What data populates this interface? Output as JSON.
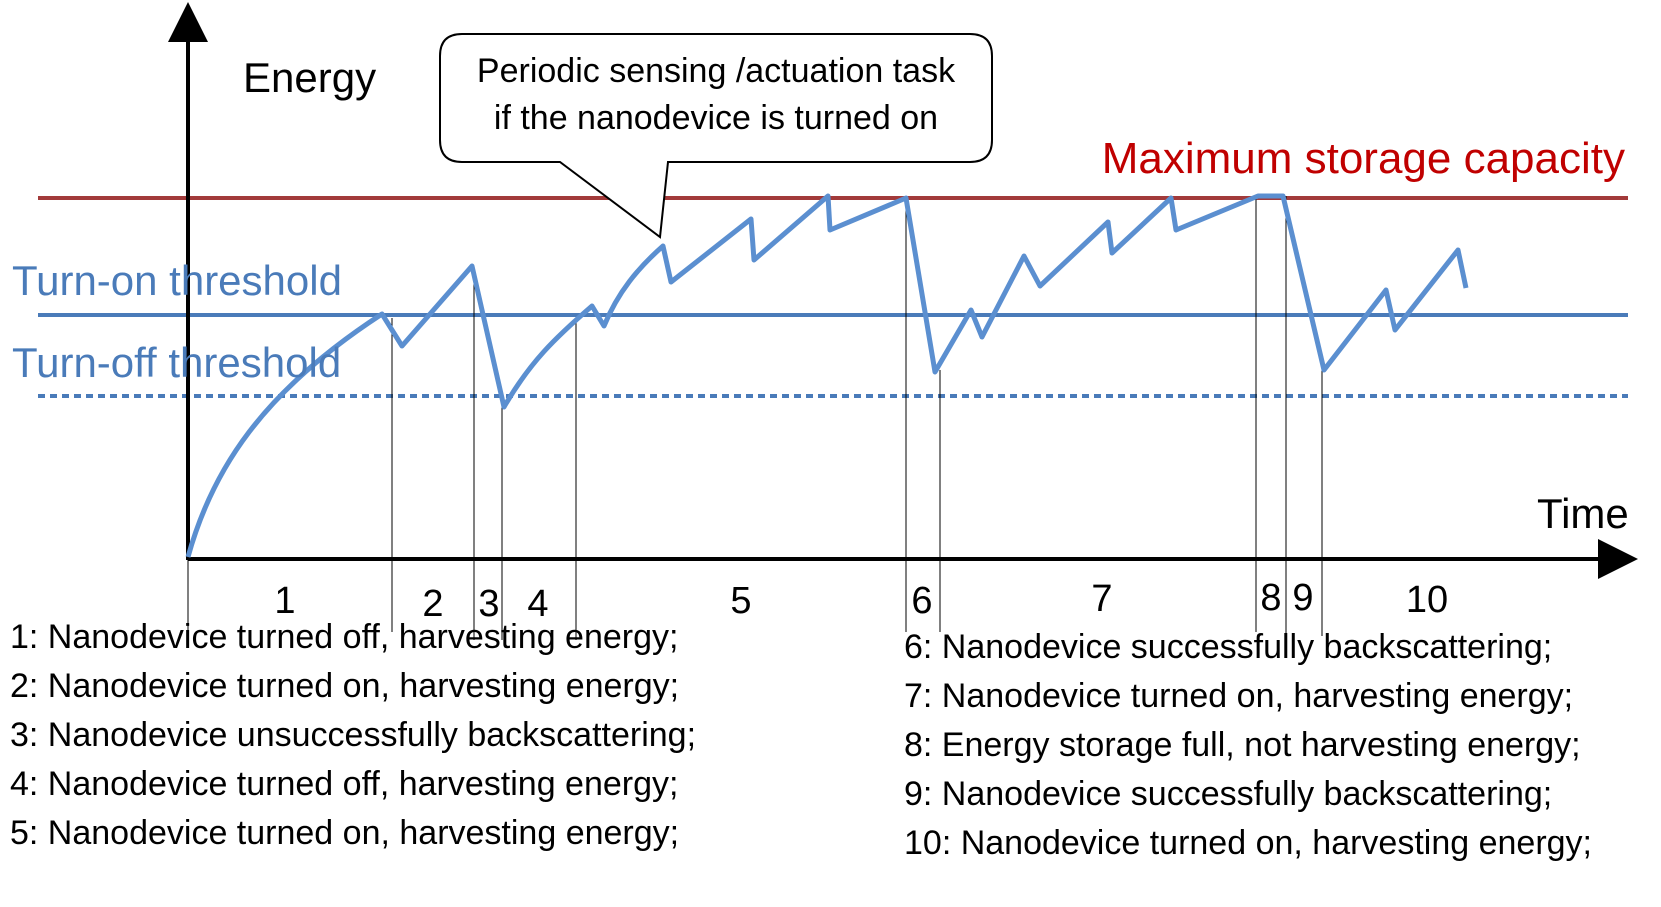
{
  "labels": {
    "y_axis": "Energy",
    "x_axis": "Time",
    "max_capacity": "Maximum storage capacity",
    "turn_on": "Turn-on threshold",
    "turn_off": "Turn-off threshold"
  },
  "callout": {
    "line1": "Periodic sensing /actuation task",
    "line2": "if the nanodevice is turned on"
  },
  "phases": [
    "1",
    "2",
    "3",
    "4",
    "5",
    "6",
    "7",
    "8",
    "9",
    "10"
  ],
  "legend": {
    "left": [
      "1: Nanodevice turned off, harvesting energy;",
      "2: Nanodevice turned on, harvesting energy;",
      "3: Nanodevice unsuccessfully backscattering;",
      "4: Nanodevice turned off, harvesting energy;",
      "5: Nanodevice turned on, harvesting energy;"
    ],
    "right": [
      "6: Nanodevice successfully backscattering;",
      "7: Nanodevice turned on, harvesting energy;",
      "8: Energy storage full, not harvesting energy;",
      "9: Nanodevice successfully backscattering;",
      "10: Nanodevice turned on, harvesting energy;"
    ]
  },
  "colors": {
    "curve": "#5b8fd0",
    "threshold": "#4a7bb9",
    "max_line": "#a23a3a",
    "max_text": "#c00000",
    "axis": "#000000"
  }
}
